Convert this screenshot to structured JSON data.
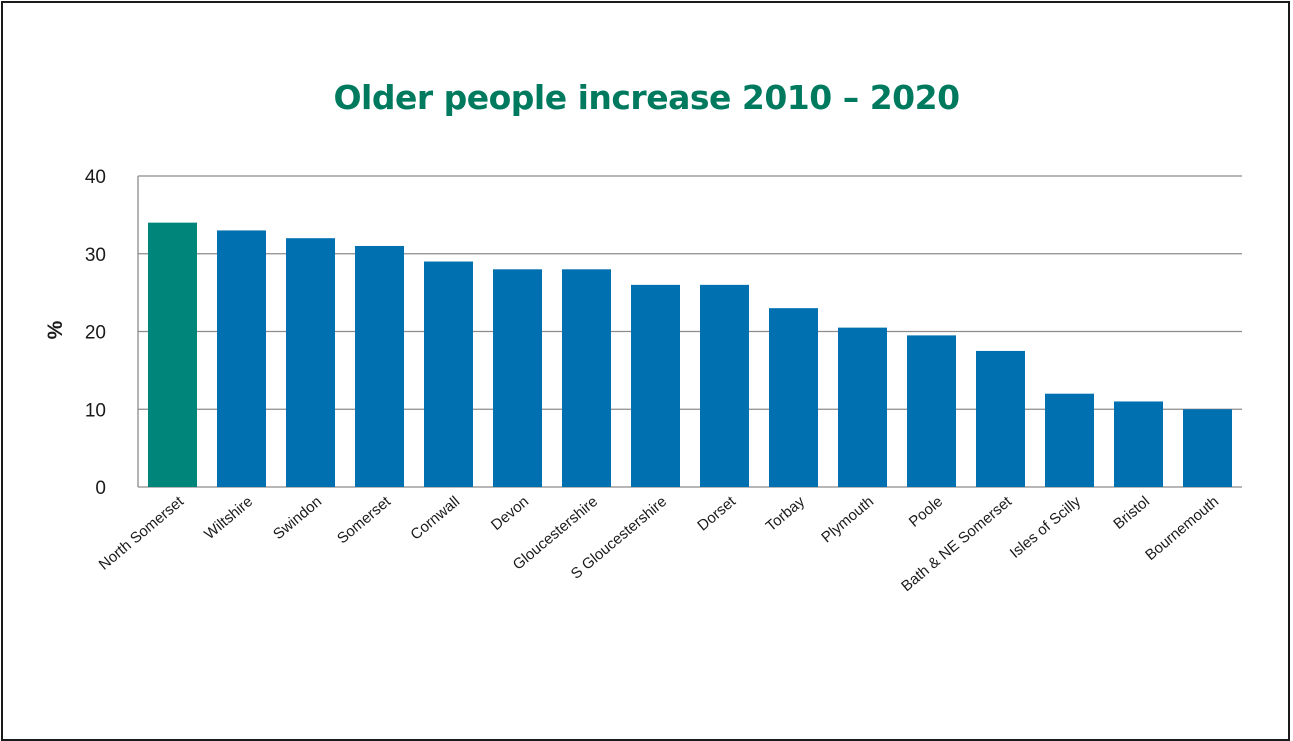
{
  "chart_data": {
    "type": "bar",
    "title": "Older people increase 2010 – 2020",
    "xlabel": "",
    "ylabel": "%",
    "ylim": [
      0,
      40
    ],
    "yticks": [
      0,
      10,
      20,
      30,
      40
    ],
    "grid": true,
    "categories": [
      "North Somerset",
      "Wiltshire",
      "Swindon",
      "Somerset",
      "Cornwall",
      "Devon",
      "Gloucestershire",
      "S Gloucestershire",
      "Dorset",
      "Torbay",
      "Plymouth",
      "Poole",
      "Bath & NE Somerset",
      "Isles of Scilly",
      "Bristol",
      "Bournemouth"
    ],
    "values": [
      34,
      33,
      32,
      31,
      29,
      28,
      28,
      26,
      26,
      23,
      20.5,
      19.5,
      17.5,
      12,
      11,
      10
    ],
    "colors": {
      "highlight": "#00857a",
      "bar": "#0070b0",
      "grid": "#8c8c8c",
      "title": "#007a5e"
    },
    "highlight_category": "North Somerset"
  }
}
